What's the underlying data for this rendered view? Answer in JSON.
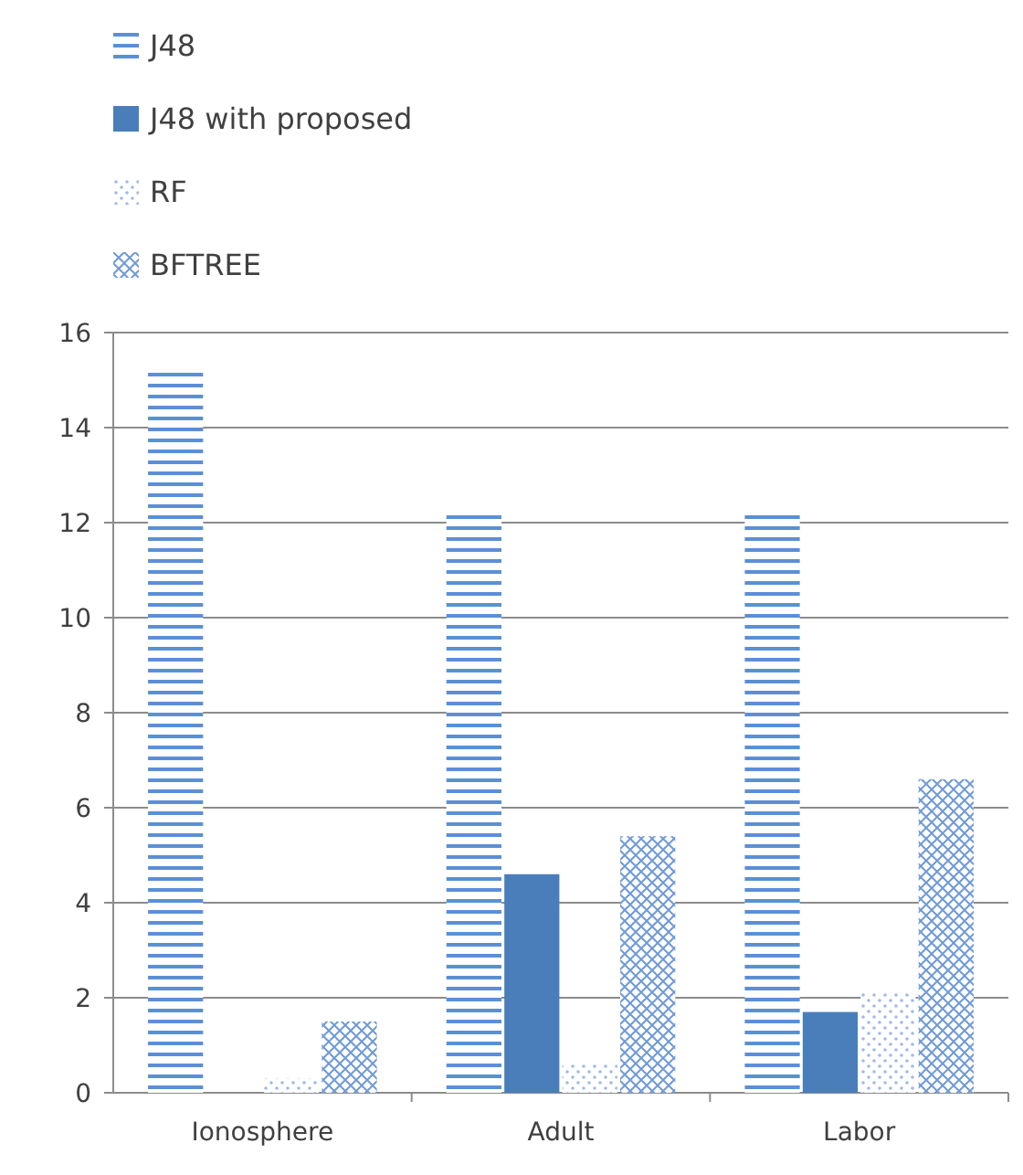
{
  "chart_data": {
    "type": "bar",
    "categories": [
      "Ionosphere",
      "Adult",
      "Labor"
    ],
    "series": [
      {
        "name": "J48",
        "color": "#5b8fd6",
        "values": [
          15.2,
          12.2,
          12.2
        ]
      },
      {
        "name": "J48 with proposed",
        "color": "#4a7ebb",
        "values": [
          0,
          4.6,
          1.7
        ]
      },
      {
        "name": "RF",
        "color": "#9dbbe6",
        "values": [
          0.3,
          0.6,
          2.1
        ]
      },
      {
        "name": "BFTREE",
        "color": "#6f9ad8",
        "values": [
          1.5,
          5.4,
          6.6
        ]
      }
    ],
    "ylim": [
      0,
      16
    ],
    "yticks": [
      0,
      2,
      4,
      6,
      8,
      10,
      12,
      14,
      16
    ],
    "grid": "y",
    "legend": "top left"
  }
}
